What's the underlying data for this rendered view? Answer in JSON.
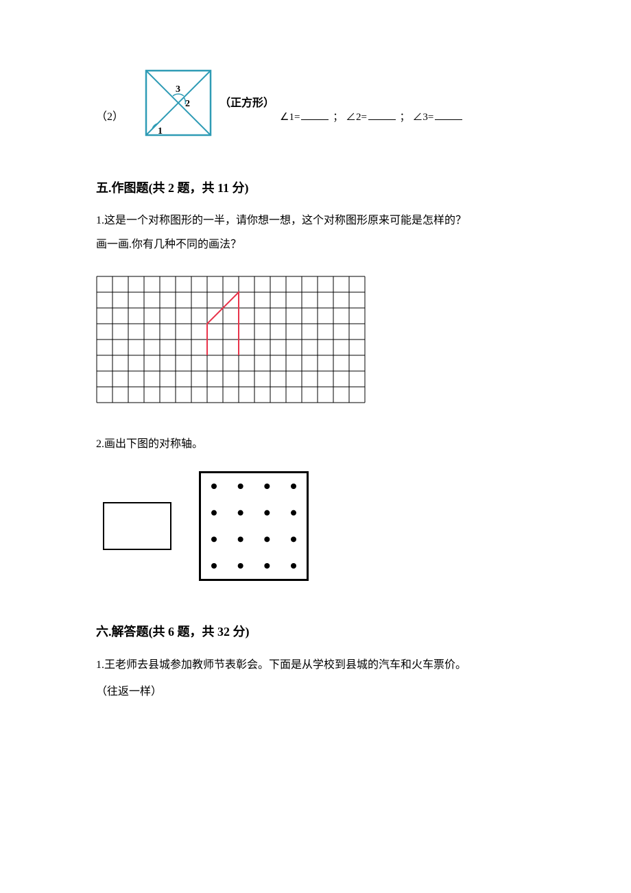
{
  "q2": {
    "number": "（2）",
    "diagram": {
      "border_color": "#2e9bb5",
      "border_width": 2.5,
      "diag_color": "#2e9bb5",
      "diag_width": 2,
      "labels": {
        "a1": "1",
        "a2": "2",
        "a3": "3"
      },
      "label_fontsize": 14
    },
    "shape_name": "（正方形）",
    "answer_parts": {
      "p1": "∠1=",
      "p2": "；  ∠2=",
      "p3": "；  ∠3="
    }
  },
  "section5": {
    "title": "五.作图题(共 2 题，共 11 分)",
    "q1_line1": "1.这是一个对称图形的一半，请你想一想，这个对称图形原来可能是怎样的？",
    "q1_line2": "画一画.你有几种不同的画法？",
    "grid": {
      "cols": 17,
      "rows": 8,
      "cell": 23,
      "line_color": "#000000",
      "line_width": 1,
      "shape_color": "#e8334a",
      "shape_width": 2,
      "shape_points": [
        [
          7,
          5
        ],
        [
          7,
          3
        ],
        [
          9,
          1
        ],
        [
          9,
          5
        ]
      ]
    },
    "q2_text": "2.画出下图的对称轴。",
    "dot_square": {
      "size": 160,
      "border_width": 3,
      "border_color": "#000000",
      "dots_per_side": 4,
      "dot_radius": 4,
      "dot_color": "#000000",
      "margin": 22
    }
  },
  "section6": {
    "title": "六.解答题(共 6 题，共 32 分)",
    "q1_line1": "1.王老师去县城参加教师节表彰会。下面是从学校到县城的汽车和火车票价。",
    "q1_line2": "（往返一样）"
  }
}
